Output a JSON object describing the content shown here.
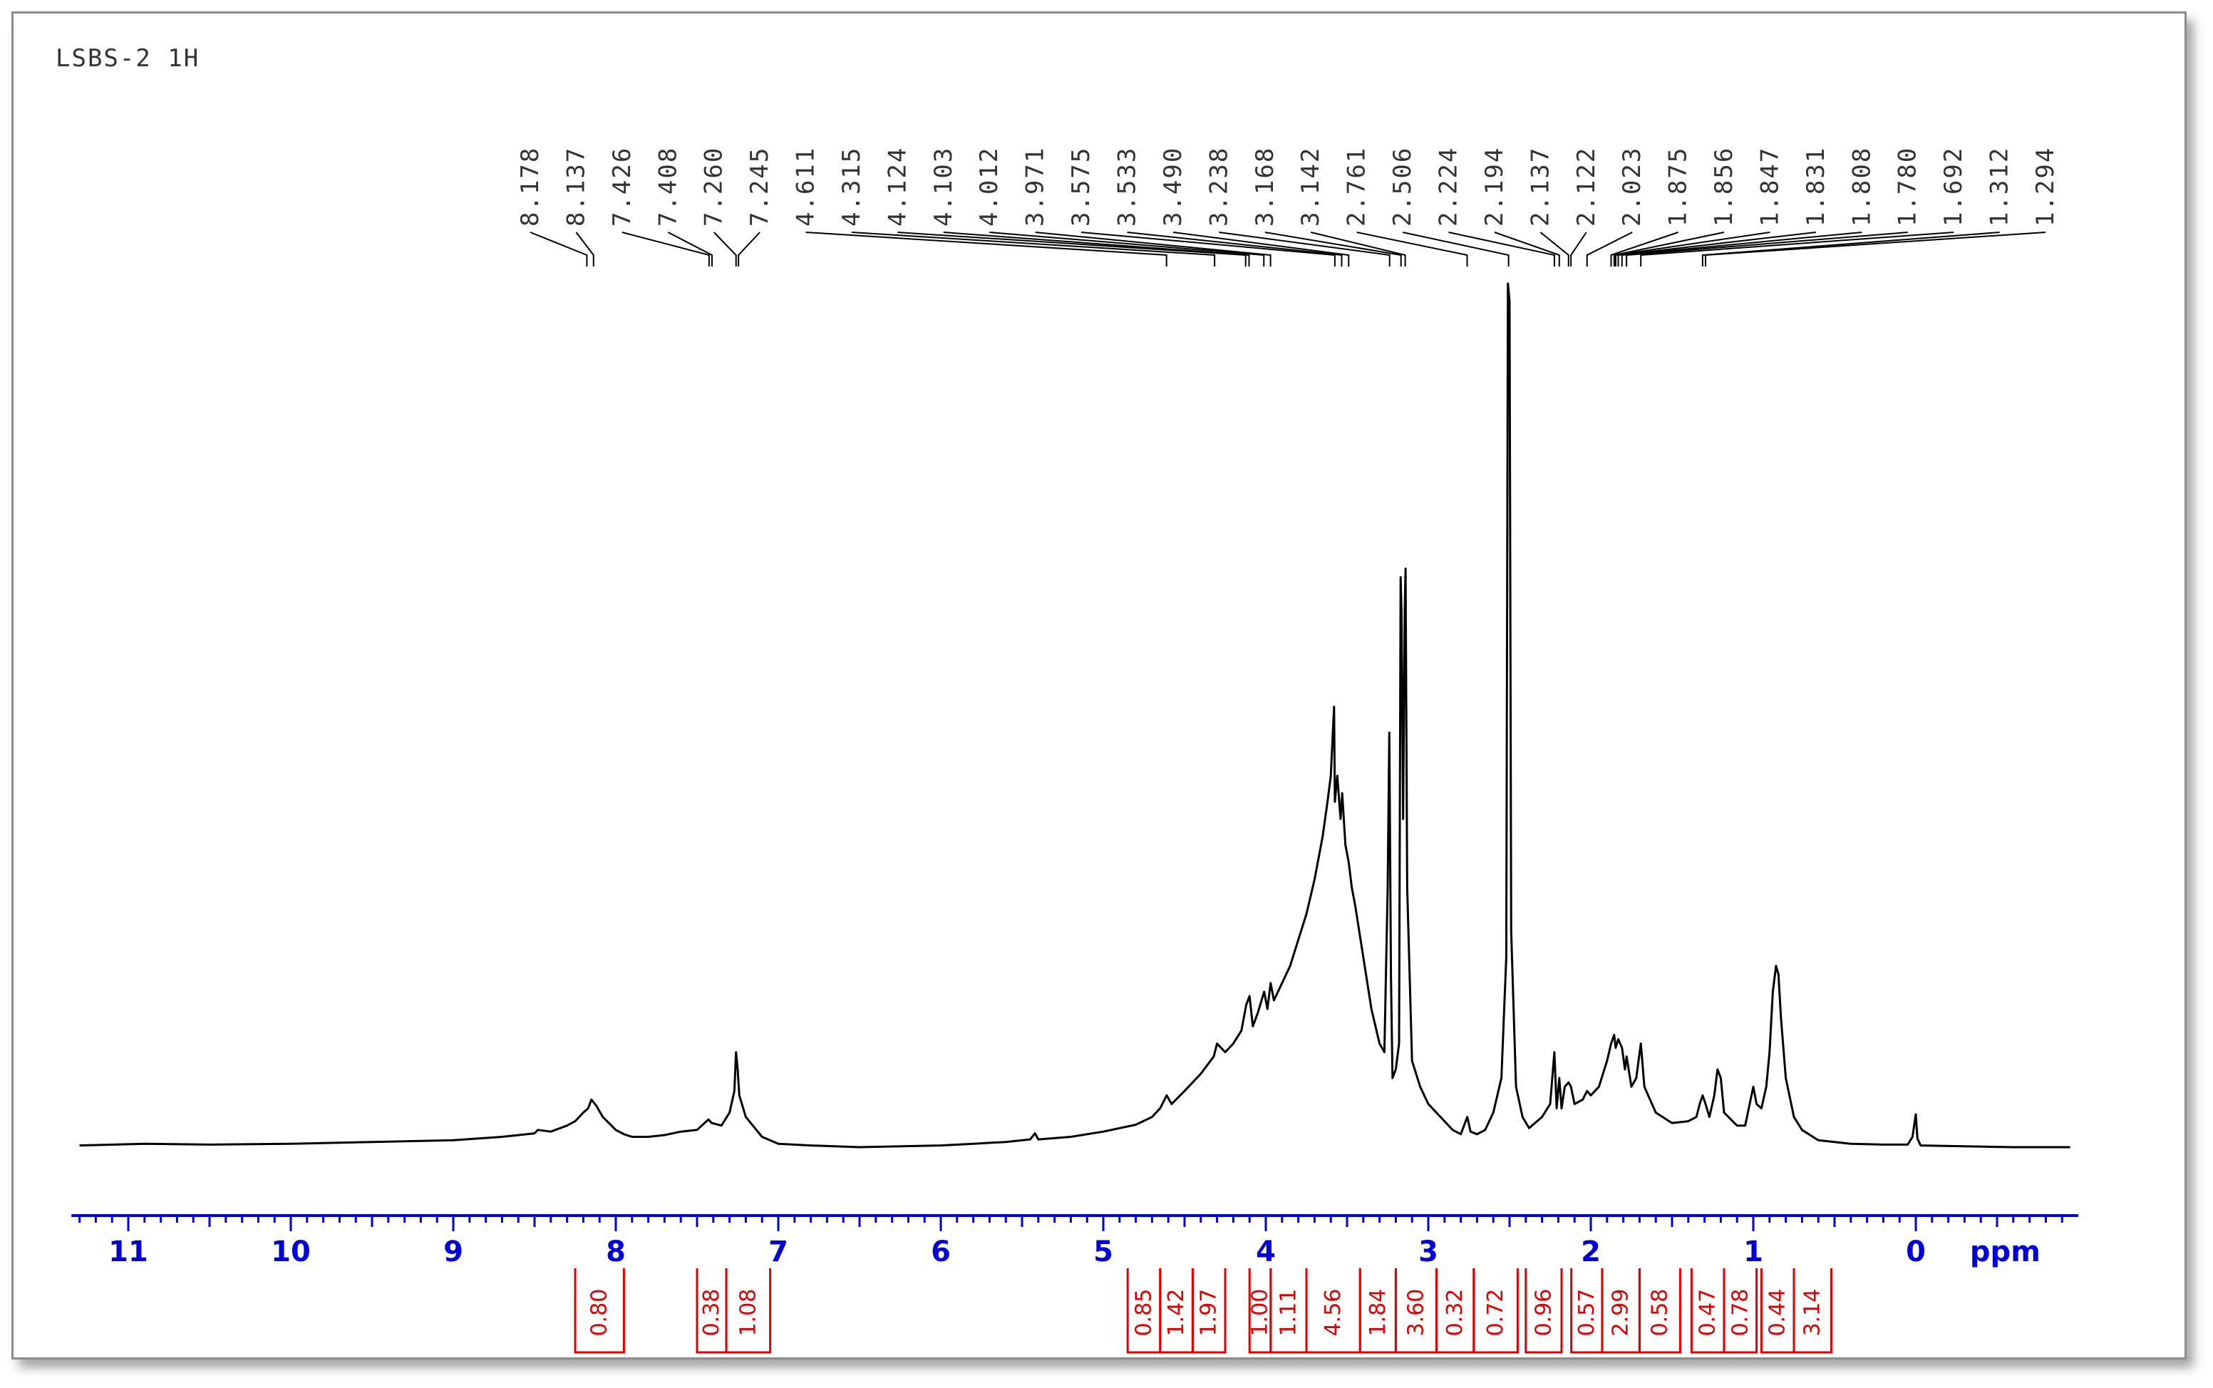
{
  "chart_data": {
    "type": "line",
    "title": "LSBS-2 1H",
    "xlabel": "ppm",
    "ylabel": "",
    "xlim": [
      11.35,
      -1.0
    ],
    "x_reversed": true,
    "grid": false,
    "x_ticks": [
      {
        "value": 11,
        "label": "11"
      },
      {
        "value": 10,
        "label": "10"
      },
      {
        "value": 9,
        "label": "9"
      },
      {
        "value": 8,
        "label": "8"
      },
      {
        "value": 7,
        "label": "7"
      },
      {
        "value": 6,
        "label": "6"
      },
      {
        "value": 5,
        "label": "5"
      },
      {
        "value": 4,
        "label": "4"
      },
      {
        "value": 3,
        "label": "3"
      },
      {
        "value": 2,
        "label": "2"
      },
      {
        "value": 1,
        "label": "1"
      },
      {
        "value": 0,
        "label": "0"
      }
    ],
    "peak_labels": [
      "8.178",
      "8.137",
      "7.426",
      "7.408",
      "7.260",
      "7.245",
      "4.611",
      "4.315",
      "4.124",
      "4.103",
      "4.012",
      "3.971",
      "3.575",
      "3.533",
      "3.490",
      "3.238",
      "3.168",
      "3.142",
      "2.761",
      "2.506",
      "2.224",
      "2.194",
      "2.137",
      "2.122",
      "2.023",
      "1.875",
      "1.856",
      "1.847",
      "1.831",
      "1.808",
      "1.780",
      "1.692",
      "1.312",
      "1.294"
    ],
    "integrals": [
      {
        "from": 8.25,
        "to": 7.95,
        "value": "0.80"
      },
      {
        "from": 7.5,
        "to": 7.32,
        "value": "0.38"
      },
      {
        "from": 7.32,
        "to": 7.05,
        "value": "1.08"
      },
      {
        "from": 4.85,
        "to": 4.65,
        "value": "0.85"
      },
      {
        "from": 4.65,
        "to": 4.45,
        "value": "1.42"
      },
      {
        "from": 4.45,
        "to": 4.25,
        "value": "1.97"
      },
      {
        "from": 4.1,
        "to": 3.97,
        "value": "1.00"
      },
      {
        "from": 3.97,
        "to": 3.75,
        "value": "1.11"
      },
      {
        "from": 3.75,
        "to": 3.42,
        "value": "4.56"
      },
      {
        "from": 3.42,
        "to": 3.2,
        "value": "1.84"
      },
      {
        "from": 3.2,
        "to": 2.95,
        "value": "3.60"
      },
      {
        "from": 2.95,
        "to": 2.72,
        "value": "0.32"
      },
      {
        "from": 2.72,
        "to": 2.45,
        "value": "0.72"
      },
      {
        "from": 2.4,
        "to": 2.18,
        "value": "0.96"
      },
      {
        "from": 2.12,
        "to": 1.93,
        "value": "0.57"
      },
      {
        "from": 1.93,
        "to": 1.7,
        "value": "2.99"
      },
      {
        "from": 1.7,
        "to": 1.45,
        "value": "0.58"
      },
      {
        "from": 1.38,
        "to": 1.18,
        "value": "0.47"
      },
      {
        "from": 1.18,
        "to": 0.98,
        "value": "0.78"
      },
      {
        "from": 0.95,
        "to": 0.75,
        "value": "0.44"
      },
      {
        "from": 0.75,
        "to": 0.52,
        "value": "3.14"
      }
    ],
    "series": [
      {
        "points": [
          [
            11.3,
            0.002
          ],
          [
            10.9,
            0.004
          ],
          [
            10.5,
            0.003
          ],
          [
            10.0,
            0.004
          ],
          [
            9.5,
            0.006
          ],
          [
            9.0,
            0.008
          ],
          [
            8.7,
            0.012
          ],
          [
            8.5,
            0.016
          ],
          [
            8.48,
            0.02
          ],
          [
            8.4,
            0.018
          ],
          [
            8.3,
            0.025
          ],
          [
            8.25,
            0.03
          ],
          [
            8.2,
            0.04
          ],
          [
            8.17,
            0.045
          ],
          [
            8.15,
            0.055
          ],
          [
            8.12,
            0.048
          ],
          [
            8.08,
            0.035
          ],
          [
            8.0,
            0.02
          ],
          [
            7.95,
            0.015
          ],
          [
            7.9,
            0.012
          ],
          [
            7.8,
            0.012
          ],
          [
            7.7,
            0.014
          ],
          [
            7.6,
            0.018
          ],
          [
            7.5,
            0.02
          ],
          [
            7.43,
            0.032
          ],
          [
            7.41,
            0.028
          ],
          [
            7.35,
            0.025
          ],
          [
            7.3,
            0.04
          ],
          [
            7.27,
            0.065
          ],
          [
            7.26,
            0.11
          ],
          [
            7.25,
            0.09
          ],
          [
            7.24,
            0.06
          ],
          [
            7.2,
            0.035
          ],
          [
            7.1,
            0.012
          ],
          [
            7.0,
            0.004
          ],
          [
            6.8,
            0.002
          ],
          [
            6.5,
            0.0
          ],
          [
            6.0,
            0.002
          ],
          [
            5.8,
            0.004
          ],
          [
            5.6,
            0.006
          ],
          [
            5.45,
            0.009
          ],
          [
            5.42,
            0.016
          ],
          [
            5.4,
            0.009
          ],
          [
            5.2,
            0.012
          ],
          [
            5.0,
            0.018
          ],
          [
            4.8,
            0.026
          ],
          [
            4.7,
            0.035
          ],
          [
            4.65,
            0.045
          ],
          [
            4.61,
            0.06
          ],
          [
            4.58,
            0.05
          ],
          [
            4.5,
            0.065
          ],
          [
            4.4,
            0.085
          ],
          [
            4.32,
            0.105
          ],
          [
            4.3,
            0.12
          ],
          [
            4.25,
            0.11
          ],
          [
            4.2,
            0.12
          ],
          [
            4.15,
            0.135
          ],
          [
            4.12,
            0.165
          ],
          [
            4.1,
            0.175
          ],
          [
            4.08,
            0.14
          ],
          [
            4.05,
            0.155
          ],
          [
            4.01,
            0.18
          ],
          [
            3.99,
            0.16
          ],
          [
            3.97,
            0.19
          ],
          [
            3.95,
            0.17
          ],
          [
            3.9,
            0.19
          ],
          [
            3.85,
            0.21
          ],
          [
            3.8,
            0.24
          ],
          [
            3.75,
            0.27
          ],
          [
            3.7,
            0.31
          ],
          [
            3.65,
            0.36
          ],
          [
            3.62,
            0.4
          ],
          [
            3.6,
            0.43
          ],
          [
            3.58,
            0.51
          ],
          [
            3.575,
            0.4
          ],
          [
            3.56,
            0.43
          ],
          [
            3.54,
            0.38
          ],
          [
            3.53,
            0.41
          ],
          [
            3.51,
            0.35
          ],
          [
            3.49,
            0.33
          ],
          [
            3.47,
            0.3
          ],
          [
            3.45,
            0.28
          ],
          [
            3.4,
            0.22
          ],
          [
            3.35,
            0.16
          ],
          [
            3.3,
            0.12
          ],
          [
            3.27,
            0.11
          ],
          [
            3.25,
            0.3
          ],
          [
            3.24,
            0.48
          ],
          [
            3.23,
            0.2
          ],
          [
            3.22,
            0.08
          ],
          [
            3.2,
            0.09
          ],
          [
            3.18,
            0.12
          ],
          [
            3.17,
            0.66
          ],
          [
            3.165,
            0.62
          ],
          [
            3.155,
            0.38
          ],
          [
            3.145,
            0.62
          ],
          [
            3.14,
            0.67
          ],
          [
            3.13,
            0.3
          ],
          [
            3.1,
            0.1
          ],
          [
            3.05,
            0.07
          ],
          [
            3.0,
            0.05
          ],
          [
            2.95,
            0.04
          ],
          [
            2.9,
            0.03
          ],
          [
            2.85,
            0.02
          ],
          [
            2.8,
            0.015
          ],
          [
            2.76,
            0.035
          ],
          [
            2.74,
            0.018
          ],
          [
            2.7,
            0.015
          ],
          [
            2.65,
            0.02
          ],
          [
            2.6,
            0.04
          ],
          [
            2.55,
            0.08
          ],
          [
            2.52,
            0.22
          ],
          [
            2.51,
            1.0
          ],
          [
            2.5,
            0.98
          ],
          [
            2.49,
            0.25
          ],
          [
            2.46,
            0.07
          ],
          [
            2.42,
            0.035
          ],
          [
            2.38,
            0.022
          ],
          [
            2.3,
            0.035
          ],
          [
            2.25,
            0.05
          ],
          [
            2.224,
            0.11
          ],
          [
            2.21,
            0.045
          ],
          [
            2.194,
            0.08
          ],
          [
            2.18,
            0.045
          ],
          [
            2.16,
            0.07
          ],
          [
            2.137,
            0.075
          ],
          [
            2.122,
            0.07
          ],
          [
            2.1,
            0.05
          ],
          [
            2.05,
            0.055
          ],
          [
            2.023,
            0.065
          ],
          [
            2.0,
            0.06
          ],
          [
            1.95,
            0.07
          ],
          [
            1.9,
            0.1
          ],
          [
            1.875,
            0.12
          ],
          [
            1.856,
            0.13
          ],
          [
            1.847,
            0.115
          ],
          [
            1.831,
            0.125
          ],
          [
            1.808,
            0.115
          ],
          [
            1.79,
            0.09
          ],
          [
            1.78,
            0.105
          ],
          [
            1.75,
            0.07
          ],
          [
            1.72,
            0.08
          ],
          [
            1.692,
            0.12
          ],
          [
            1.67,
            0.07
          ],
          [
            1.6,
            0.04
          ],
          [
            1.5,
            0.028
          ],
          [
            1.4,
            0.03
          ],
          [
            1.35,
            0.035
          ],
          [
            1.33,
            0.05
          ],
          [
            1.312,
            0.06
          ],
          [
            1.294,
            0.05
          ],
          [
            1.27,
            0.035
          ],
          [
            1.24,
            0.06
          ],
          [
            1.22,
            0.09
          ],
          [
            1.2,
            0.08
          ],
          [
            1.18,
            0.04
          ],
          [
            1.1,
            0.025
          ],
          [
            1.05,
            0.025
          ],
          [
            1.0,
            0.07
          ],
          [
            0.98,
            0.05
          ],
          [
            0.95,
            0.045
          ],
          [
            0.92,
            0.07
          ],
          [
            0.9,
            0.11
          ],
          [
            0.88,
            0.18
          ],
          [
            0.86,
            0.21
          ],
          [
            0.845,
            0.2
          ],
          [
            0.83,
            0.15
          ],
          [
            0.8,
            0.08
          ],
          [
            0.75,
            0.035
          ],
          [
            0.7,
            0.02
          ],
          [
            0.6,
            0.008
          ],
          [
            0.4,
            0.004
          ],
          [
            0.2,
            0.003
          ],
          [
            0.05,
            0.003
          ],
          [
            0.02,
            0.012
          ],
          [
            0.0,
            0.038
          ],
          [
            -0.01,
            0.01
          ],
          [
            -0.03,
            0.002
          ],
          [
            -0.3,
            0.001
          ],
          [
            -0.6,
            0.0
          ],
          [
            -0.95,
            0.0
          ]
        ]
      }
    ]
  }
}
